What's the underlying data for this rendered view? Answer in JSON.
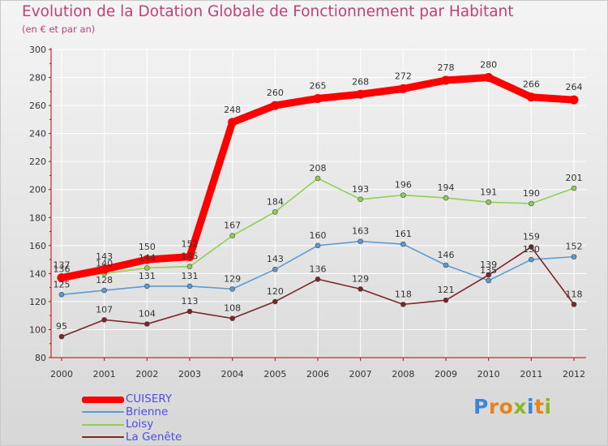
{
  "header": {
    "title": "Evolution de la Dotation Globale de Fonctionnement par Habitant",
    "subtitle": "(en € et par an)"
  },
  "brand": {
    "text": "Proxiti",
    "letter_colors": [
      "#3a86d9",
      "#e8821e",
      "#e8821e",
      "#8ab823",
      "#3a86d9",
      "#e8821e",
      "#8ab823"
    ]
  },
  "colors": {
    "axis": "#cc0000",
    "grid": "#ffffff"
  },
  "chart_data": {
    "type": "line",
    "title": "Evolution de la Dotation Globale de Fonctionnement par Habitant",
    "subtitle": "(en € et par an)",
    "xlabel": "",
    "ylabel": "",
    "x": [
      "2000",
      "2001",
      "2002",
      "2003",
      "2004",
      "2005",
      "2006",
      "2007",
      "2008",
      "2009",
      "2010",
      "2011",
      "2012"
    ],
    "ylim": [
      80,
      300
    ],
    "yticks": [
      80,
      100,
      120,
      140,
      160,
      180,
      200,
      220,
      240,
      260,
      280,
      300
    ],
    "grid": true,
    "legend_position": "bottom-left",
    "series": [
      {
        "name": "CUISERY",
        "color": "#ff0000",
        "width": "thick",
        "values": [
          137,
          143,
          150,
          152,
          248,
          260,
          265,
          268,
          272,
          278,
          280,
          266,
          264
        ]
      },
      {
        "name": "Brienne",
        "color": "#5b9bd5",
        "width": "thin",
        "values": [
          125,
          128,
          131,
          131,
          129,
          143,
          160,
          163,
          161,
          146,
          135,
          150,
          152
        ]
      },
      {
        "name": "Loisy",
        "color": "#8fd14f",
        "width": "thin",
        "values": [
          136,
          140,
          144,
          145,
          167,
          184,
          208,
          193,
          196,
          194,
          191,
          190,
          201
        ]
      },
      {
        "name": "La Genête",
        "color": "#7a2626",
        "width": "thin",
        "values": [
          95,
          107,
          104,
          113,
          108,
          120,
          136,
          129,
          118,
          121,
          139,
          159,
          118
        ]
      }
    ]
  }
}
